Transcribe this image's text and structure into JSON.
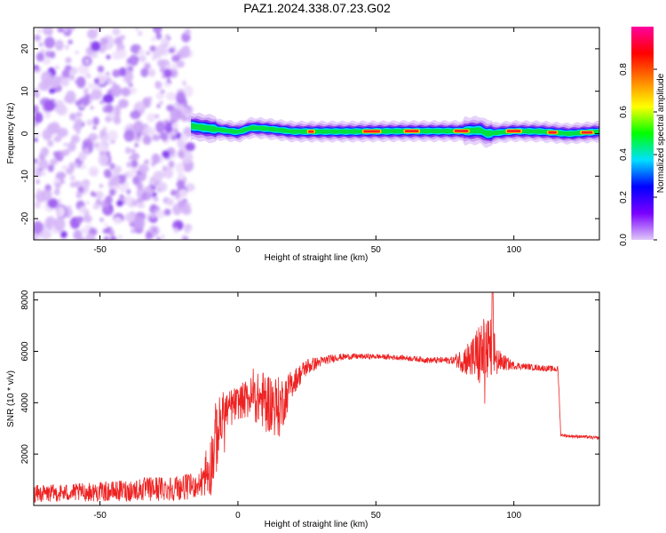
{
  "title": "PAZ1.2024.338.07.23.G02",
  "chart_data": [
    {
      "type": "heatmap",
      "xlabel": "Height of straight line (km)",
      "ylabel": "Frequency (Hz)",
      "xlim": [
        -74,
        131
      ],
      "ylim": [
        -25,
        25
      ],
      "xticks": [
        -50,
        0,
        50,
        100
      ],
      "yticks": [
        -20,
        -10,
        0,
        10,
        20
      ],
      "colorbar": {
        "label": "Normalized spectral amplitude",
        "ticks": [
          "0.0",
          "0.2",
          "0.4",
          "0.6",
          "0.8"
        ],
        "range": [
          0,
          1
        ],
        "colormap": [
          "#e0c8f8",
          "#7a00ff",
          "#0000ff",
          "#00e0ff",
          "#00ff00",
          "#ffff00",
          "#ff8000",
          "#ff0000",
          "#ff00a0"
        ]
      },
      "noise_region_x": [
        -74,
        -17
      ],
      "ridge": {
        "x": [
          -17,
          -10,
          0,
          5,
          10,
          20,
          40,
          60,
          80,
          88,
          90,
          100,
          110,
          120,
          131
        ],
        "freq": [
          1.8,
          1.2,
          0.4,
          1.4,
          1.2,
          0.5,
          0.5,
          0.6,
          0.6,
          0.8,
          0.0,
          0.6,
          0.5,
          0.0,
          0.5
        ]
      }
    },
    {
      "type": "line",
      "xlabel": "Height of straight line (km)",
      "ylabel": "SNR (10 * v/v)",
      "xlim": [
        -74,
        131
      ],
      "ylim": [
        0,
        8300
      ],
      "xticks": [
        -50,
        0,
        50,
        100
      ],
      "yticks": [
        2000,
        4000,
        6000,
        8000
      ],
      "grid": false,
      "series": [
        {
          "color": "#ee2222",
          "x": [
            -74,
            -60,
            -45,
            -30,
            -20,
            -14,
            -10,
            -8,
            -5,
            0,
            5,
            10,
            15,
            20,
            25,
            30,
            35,
            40,
            50,
            60,
            70,
            78,
            85,
            88,
            92,
            95,
            100,
            105,
            110,
            116,
            117,
            120,
            125,
            131
          ],
          "y": [
            450,
            500,
            550,
            650,
            700,
            800,
            1500,
            2600,
            3600,
            4000,
            4200,
            4100,
            3800,
            4800,
            5400,
            5600,
            5750,
            5800,
            5800,
            5750,
            5650,
            5650,
            5700,
            5900,
            6000,
            5600,
            5450,
            5400,
            5350,
            5300,
            2750,
            2700,
            2680,
            2620
          ],
          "noise": [
            350,
            350,
            400,
            500,
            500,
            500,
            1200,
            1500,
            900,
            650,
            850,
            1200,
            1200,
            500,
            350,
            200,
            150,
            120,
            100,
            100,
            120,
            150,
            900,
            1400,
            1400,
            400,
            150,
            120,
            120,
            120,
            60,
            60,
            60,
            60
          ]
        }
      ]
    }
  ]
}
